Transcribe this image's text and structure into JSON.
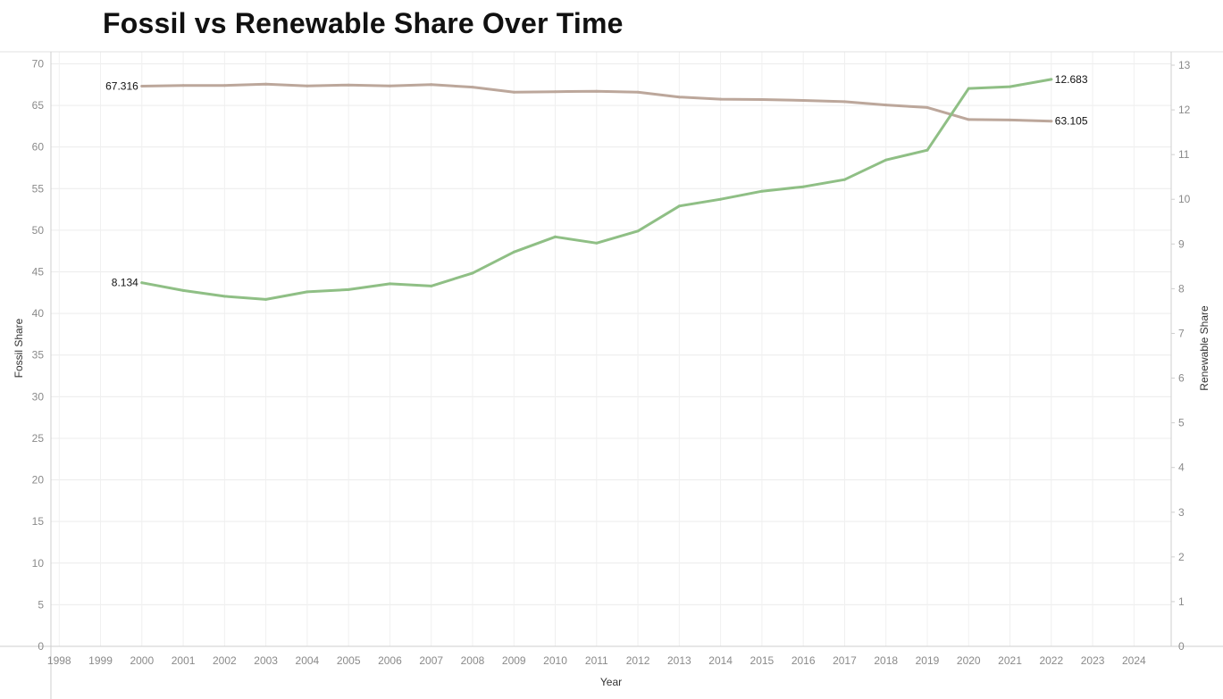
{
  "chart_data": {
    "type": "line",
    "title": "Fossil vs Renewable Share Over Time",
    "xlabel": "Year",
    "ylabel_left": "Fossil Share",
    "ylabel_right": "Renewable Share",
    "x_ticks": [
      1998,
      1999,
      2000,
      2001,
      2002,
      2003,
      2004,
      2005,
      2006,
      2007,
      2008,
      2009,
      2010,
      2011,
      2012,
      2013,
      2014,
      2015,
      2016,
      2017,
      2018,
      2019,
      2020,
      2021,
      2022,
      2023,
      2024
    ],
    "xlim": [
      1997.8,
      2024.9
    ],
    "y_left_ticks": [
      0,
      5,
      10,
      15,
      20,
      25,
      30,
      35,
      40,
      45,
      50,
      55,
      60,
      65,
      70
    ],
    "ylim_left": [
      0,
      70.8
    ],
    "y_right_ticks": [
      0,
      1,
      2,
      3,
      4,
      5,
      6,
      7,
      8,
      9,
      10,
      11,
      12,
      13
    ],
    "ylim_right": [
      0,
      13.18
    ],
    "grid": true,
    "x": [
      2000,
      2001,
      2002,
      2003,
      2004,
      2005,
      2006,
      2007,
      2008,
      2009,
      2010,
      2011,
      2012,
      2013,
      2014,
      2015,
      2016,
      2017,
      2018,
      2019,
      2020,
      2021,
      2022
    ],
    "series": [
      {
        "name": "Fossil Share",
        "axis": "left",
        "color": "#bca79b",
        "values": [
          67.316,
          67.4,
          67.4,
          67.55,
          67.35,
          67.45,
          67.35,
          67.5,
          67.2,
          66.6,
          66.65,
          66.7,
          66.6,
          66.0,
          65.75,
          65.7,
          65.6,
          65.45,
          65.05,
          64.75,
          63.3,
          63.25,
          63.105
        ],
        "labels": [
          "67.316",
          "63.105"
        ]
      },
      {
        "name": "Renewable Share",
        "axis": "right",
        "color": "#8fbf85",
        "values": [
          8.134,
          7.96,
          7.83,
          7.76,
          7.93,
          7.98,
          8.11,
          8.06,
          8.35,
          8.82,
          9.16,
          9.02,
          9.29,
          9.85,
          10.0,
          10.18,
          10.28,
          10.44,
          10.88,
          11.1,
          12.48,
          12.52,
          12.683
        ],
        "labels": [
          "8.134",
          "12.683"
        ]
      }
    ]
  }
}
